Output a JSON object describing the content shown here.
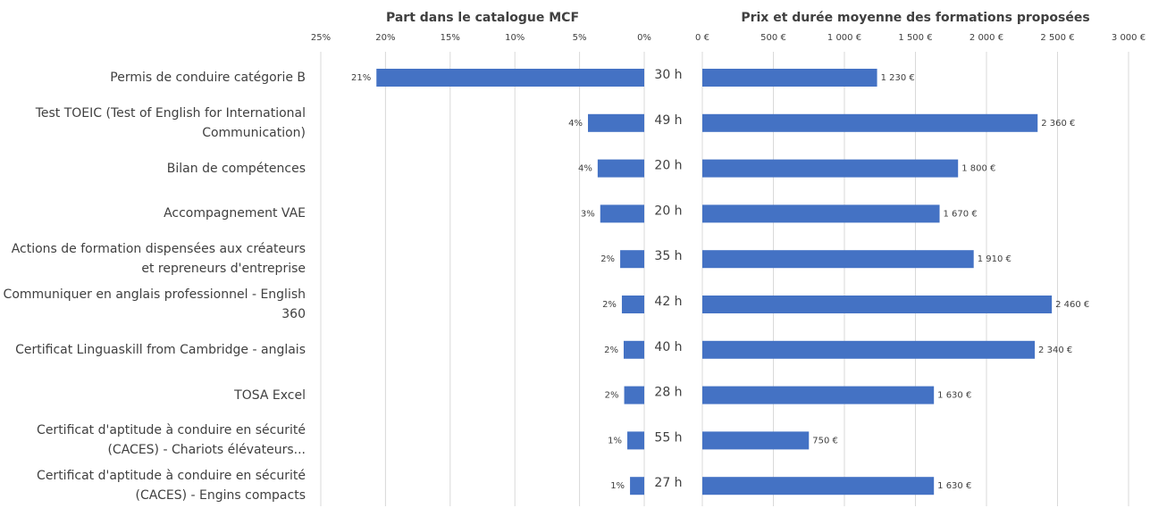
{
  "chart_data": [
    {
      "type": "hbar",
      "title": "Part dans le catalogue MCF",
      "reversed": true,
      "color": "#4472c4",
      "grid": true,
      "categories": [
        "Permis de conduire catégorie B",
        "Test TOEIC (Test of English for International Communication)",
        "Bilan de compétences",
        "Accompagnement VAE",
        "Actions de formation dispensées aux créateurs et repreneurs d'entreprise",
        "Communiquer en anglais professionnel - English 360",
        "Certificat Linguaskill from Cambridge - anglais",
        "TOSA Excel",
        "Certificat d'aptitude à conduire en sécurité (CACES) - Chariots élévateurs...",
        "Certificat d'aptitude à conduire en sécurité (CACES) - Engins compacts"
      ],
      "values": [
        20.7,
        4.35,
        3.6,
        3.4,
        1.86,
        1.73,
        1.59,
        1.55,
        1.31,
        1.1
      ],
      "value_labels": [
        "21%",
        "4%",
        "4%",
        "3%",
        "2%",
        "2%",
        "2%",
        "2%",
        "1%",
        "1%"
      ],
      "xlim": [
        0,
        25
      ],
      "xticks": [
        {
          "value": 0,
          "label": "0%"
        },
        {
          "value": 5,
          "label": "5%"
        },
        {
          "value": 10,
          "label": "10%"
        },
        {
          "value": 15,
          "label": "15%"
        },
        {
          "value": 20,
          "label": "20%"
        },
        {
          "value": 25,
          "label": "25%"
        }
      ]
    },
    {
      "type": "hbar",
      "title": "Prix et durée moyenne des formations proposées",
      "reversed": false,
      "color": "#4472c4",
      "grid": true,
      "values": [
        1230,
        2360,
        1800,
        1670,
        1910,
        2460,
        2340,
        1630,
        750,
        1630
      ],
      "value_labels": [
        "1 230 €",
        "2 360 €",
        "1 800 €",
        "1 670 €",
        "1 910 €",
        "2 460 €",
        "2 340 €",
        "1 630 €",
        "750 €",
        "1 630 €"
      ],
      "durations": [
        "30 h",
        "49 h",
        "20 h",
        "20 h",
        "35 h",
        "42 h",
        "40 h",
        "28 h",
        "55 h",
        "27 h"
      ],
      "xlim": [
        0,
        3000
      ],
      "xticks": [
        {
          "value": 0,
          "label": "0 €"
        },
        {
          "value": 500,
          "label": "500 €"
        },
        {
          "value": 1000,
          "label": "1 000 €"
        },
        {
          "value": 1500,
          "label": "1 500 €"
        },
        {
          "value": 2000,
          "label": "2 000 €"
        },
        {
          "value": 2500,
          "label": "2 500 €"
        },
        {
          "value": 3000,
          "label": "3 000 €"
        }
      ]
    }
  ]
}
